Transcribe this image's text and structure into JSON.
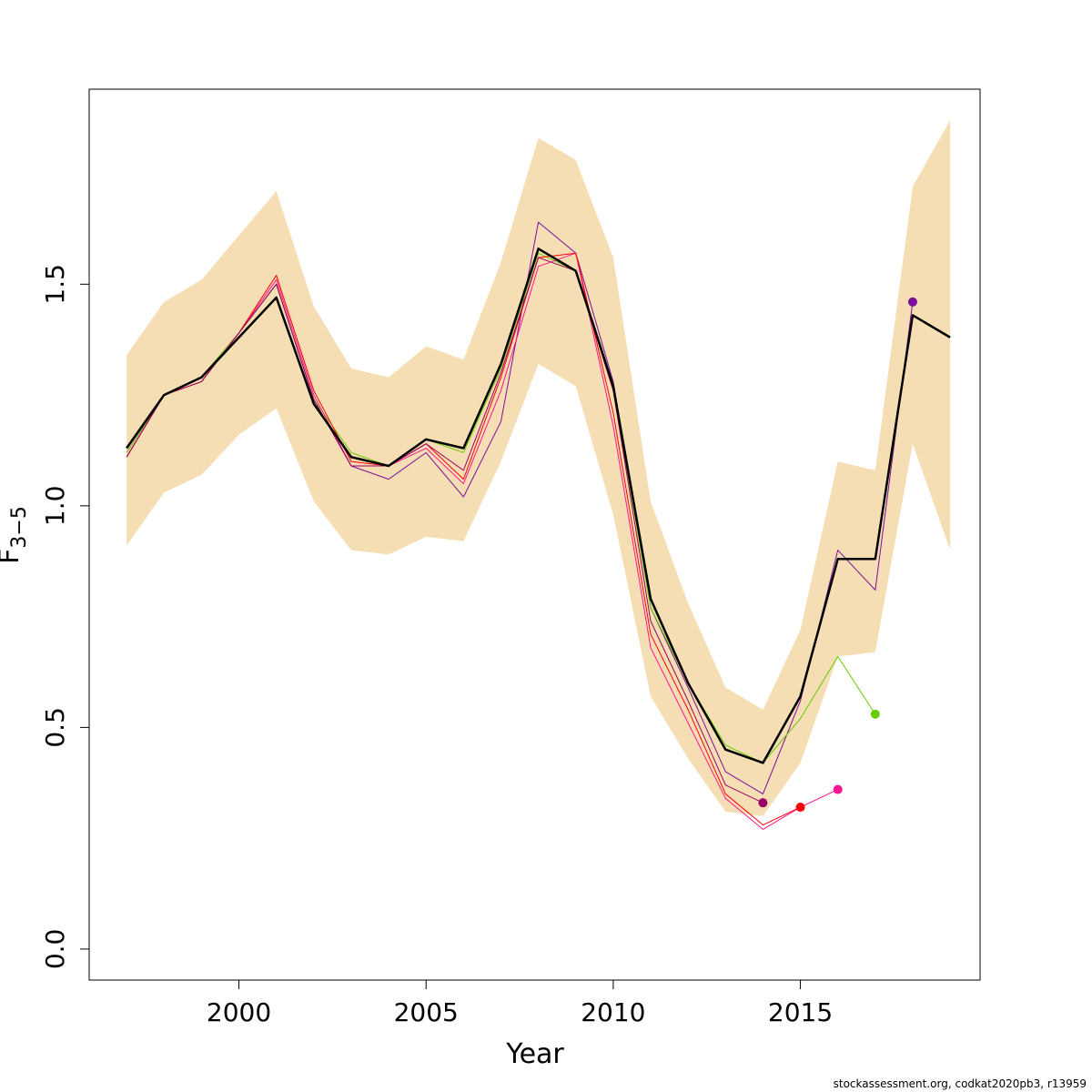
{
  "chart_data": {
    "type": "line",
    "xlabel": "Year",
    "ylabel": "F",
    "ylabel_subscript": "3−5",
    "xlim": [
      1996.0,
      2019.8
    ],
    "ylim": [
      -0.07,
      1.94
    ],
    "xticks": [
      2000,
      2005,
      2010,
      2015
    ],
    "yticks": [
      0.0,
      0.5,
      1.0,
      1.5
    ],
    "ytick_labels": [
      "0.0",
      "0.5",
      "1.0",
      "1.5"
    ],
    "grid": false,
    "legend": "none",
    "confidence_band": {
      "color": "#f5deb3",
      "x": [
        1997,
        1998,
        1999,
        2000,
        2001,
        2002,
        2003,
        2004,
        2005,
        2006,
        2007,
        2008,
        2009,
        2010,
        2011,
        2012,
        2013,
        2014,
        2015,
        2016,
        2017,
        2018,
        2019
      ],
      "upper": [
        1.34,
        1.46,
        1.51,
        1.61,
        1.71,
        1.45,
        1.31,
        1.29,
        1.36,
        1.33,
        1.55,
        1.83,
        1.78,
        1.56,
        1.01,
        0.78,
        0.59,
        0.54,
        0.72,
        1.1,
        1.08,
        1.72,
        1.87
      ],
      "lower": [
        0.91,
        1.03,
        1.07,
        1.16,
        1.22,
        1.01,
        0.9,
        0.89,
        0.93,
        0.92,
        1.1,
        1.32,
        1.27,
        0.98,
        0.57,
        0.43,
        0.31,
        0.3,
        0.42,
        0.66,
        0.67,
        1.14,
        0.9
      ]
    },
    "series": [
      {
        "color": "#000000",
        "width": 2.5,
        "x": [
          1997,
          1998,
          1999,
          2000,
          2001,
          2002,
          2003,
          2004,
          2005,
          2006,
          2007,
          2008,
          2009,
          2010,
          2011,
          2012,
          2013,
          2014,
          2015,
          2016,
          2017,
          2018,
          2019
        ],
        "values": [
          1.13,
          1.25,
          1.29,
          1.38,
          1.47,
          1.23,
          1.11,
          1.09,
          1.15,
          1.13,
          1.32,
          1.58,
          1.53,
          1.27,
          0.79,
          0.6,
          0.45,
          0.42,
          0.57,
          0.88,
          0.88,
          1.43,
          1.38
        ]
      },
      {
        "color": "#7b0e9a",
        "width": 1,
        "x": [
          1997,
          1998,
          1999,
          2000,
          2001,
          2002,
          2003,
          2004,
          2005,
          2006,
          2007,
          2008,
          2009,
          2010,
          2011,
          2012,
          2013,
          2014,
          2015,
          2016,
          2017,
          2018
        ],
        "values": [
          1.12,
          1.25,
          1.29,
          1.39,
          1.5,
          1.24,
          1.09,
          1.06,
          1.12,
          1.02,
          1.19,
          1.64,
          1.57,
          1.28,
          0.77,
          0.59,
          0.4,
          0.35,
          0.56,
          0.9,
          0.81,
          1.46
        ],
        "endpoint": true
      },
      {
        "color": "#66cc00",
        "width": 1,
        "x": [
          1997,
          1998,
          1999,
          2000,
          2001,
          2002,
          2003,
          2004,
          2005,
          2006,
          2007,
          2008,
          2009,
          2010,
          2011,
          2012,
          2013,
          2014,
          2015,
          2016,
          2017
        ],
        "values": [
          1.12,
          1.25,
          1.29,
          1.39,
          1.5,
          1.24,
          1.12,
          1.09,
          1.15,
          1.12,
          1.31,
          1.57,
          1.53,
          1.26,
          0.77,
          0.6,
          0.46,
          0.42,
          0.52,
          0.66,
          0.53
        ],
        "endpoint": true
      },
      {
        "color": "#ff1493",
        "width": 1,
        "x": [
          1997,
          1998,
          1999,
          2000,
          2001,
          2002,
          2003,
          2004,
          2005,
          2006,
          2007,
          2008,
          2009,
          2010,
          2011,
          2012,
          2013,
          2014,
          2015,
          2016
        ],
        "values": [
          1.11,
          1.25,
          1.28,
          1.39,
          1.51,
          1.25,
          1.09,
          1.09,
          1.13,
          1.05,
          1.26,
          1.54,
          1.57,
          1.18,
          0.68,
          0.51,
          0.34,
          0.27,
          0.32,
          0.36
        ],
        "endpoint": true
      },
      {
        "color": "#ff0000",
        "width": 1,
        "x": [
          1997,
          1998,
          1999,
          2000,
          2001,
          2002,
          2003,
          2004,
          2005,
          2006,
          2007,
          2008,
          2009,
          2010,
          2011,
          2012,
          2013,
          2014,
          2015
        ],
        "values": [
          1.11,
          1.25,
          1.28,
          1.39,
          1.52,
          1.26,
          1.1,
          1.09,
          1.14,
          1.06,
          1.29,
          1.56,
          1.57,
          1.21,
          0.71,
          0.54,
          0.35,
          0.28,
          0.32
        ],
        "endpoint": true
      },
      {
        "color": "#990066",
        "width": 1,
        "x": [
          1997,
          1998,
          1999,
          2000,
          2001,
          2002,
          2003,
          2004,
          2005,
          2006,
          2007,
          2008,
          2009,
          2010,
          2011,
          2012,
          2013,
          2014
        ],
        "values": [
          1.11,
          1.25,
          1.28,
          1.39,
          1.5,
          1.24,
          1.09,
          1.09,
          1.14,
          1.08,
          1.3,
          1.56,
          1.53,
          1.26,
          0.74,
          0.56,
          0.37,
          0.33
        ],
        "endpoint": true
      }
    ]
  },
  "footer": {
    "text": "stockassessment.org, codkat2020pb3, r13959"
  }
}
